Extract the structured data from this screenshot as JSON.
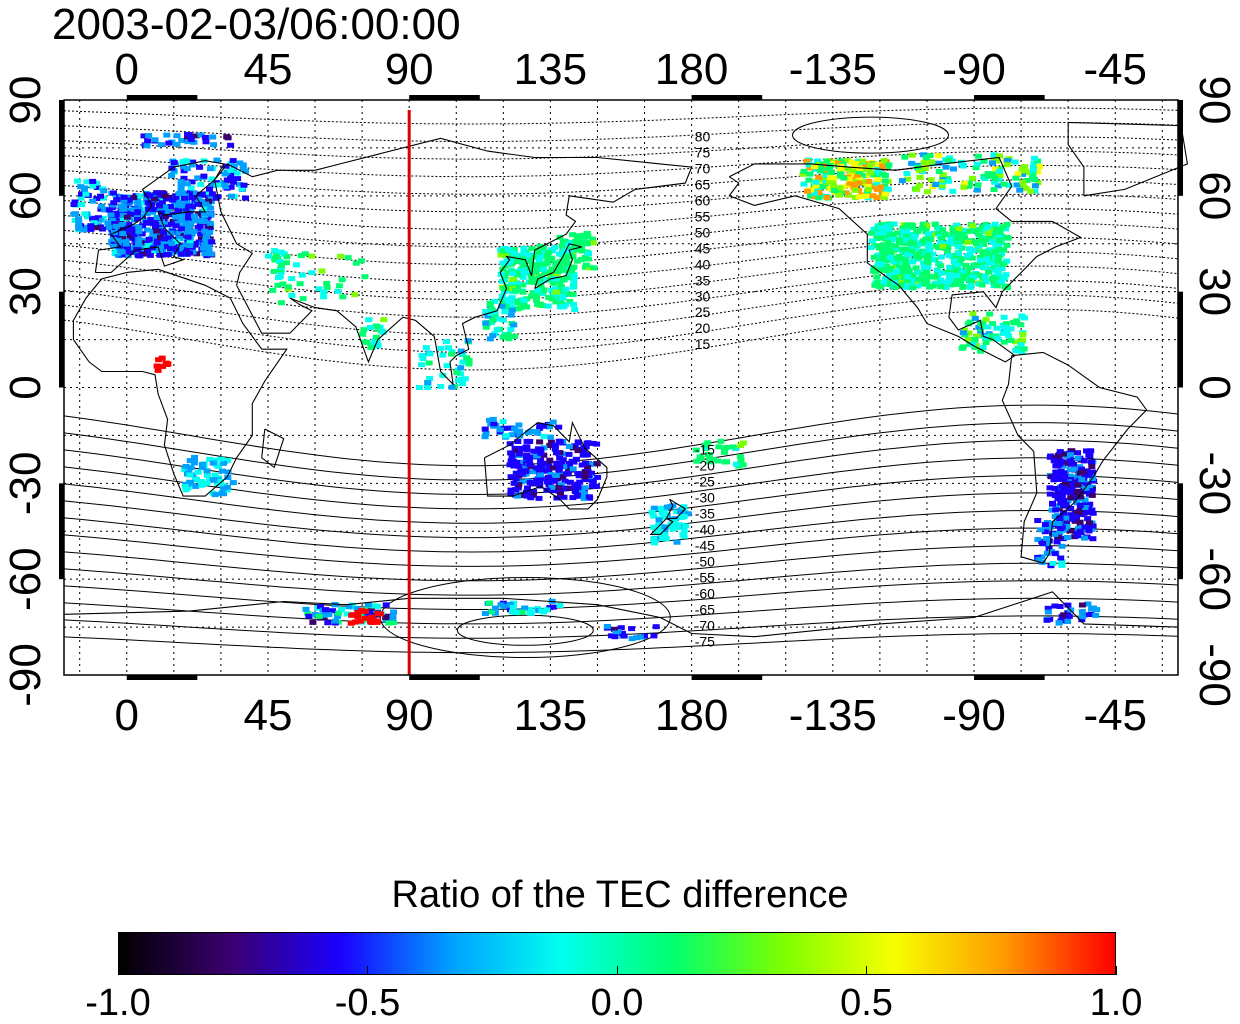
{
  "timestamp": "2003-02-03/06:00:00",
  "map": {
    "top_lon_ticks": [
      "0",
      "45",
      "90",
      "135",
      "180",
      "-135",
      "-90",
      "-45"
    ],
    "bottom_lon_ticks": [
      "0",
      "45",
      "90",
      "135",
      "180",
      "-135",
      "-90",
      "-45"
    ],
    "left_lat_ticks": [
      "90",
      "60",
      "30",
      "0",
      "-30",
      "-60",
      "-90"
    ],
    "right_lat_ticks": [
      "90",
      "60",
      "30",
      "0",
      "-30",
      "-60",
      "-90"
    ],
    "lon_values": [
      0,
      45,
      90,
      135,
      180,
      225,
      270,
      315
    ],
    "lat_values": [
      90,
      60,
      30,
      0,
      -30,
      -60,
      -90
    ],
    "lon_range": [
      -20,
      335
    ],
    "lat_range": [
      -90,
      90
    ],
    "grid": true,
    "marker_line_lon": 90,
    "marker_line_color": "#dd0000",
    "contour_labels_north": [
      "80",
      "75",
      "70",
      "65",
      "60",
      "55",
      "50",
      "45",
      "40",
      "35",
      "30",
      "25",
      "20",
      "15"
    ],
    "contour_labels_south": [
      "-15",
      "-20",
      "-25",
      "-30",
      "-35",
      "-40",
      "-45",
      "-50",
      "-55",
      "-60",
      "-65",
      "-70",
      "-75"
    ]
  },
  "colorbar": {
    "title": "Ratio of the TEC difference",
    "tick_labels": [
      "-1.0",
      "-0.5",
      "0.0",
      "0.5",
      "1.0"
    ],
    "range": [
      -1.0,
      1.0
    ],
    "colors": [
      "#000000",
      "#3a006e",
      "#1a00ff",
      "#00a0ff",
      "#00ffee",
      "#00ff6e",
      "#7dff00",
      "#f6ff00",
      "#ff9a00",
      "#ff0000"
    ]
  },
  "colors": {
    "coastline": "#000000",
    "grid": "#000000",
    "frame": "#000000"
  }
}
